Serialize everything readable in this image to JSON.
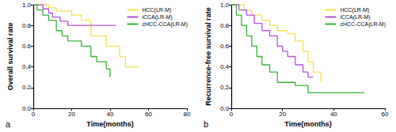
{
  "chart_data": [
    {
      "type": "line",
      "title": "a",
      "x_label": "Time(months)",
      "y_label": "Overall survival rate",
      "xlim": [
        0,
        80
      ],
      "xticks": [
        0,
        20,
        40,
        60,
        80
      ],
      "ylim": [
        0,
        1
      ],
      "yticks": [
        {
          "value": 0,
          "label": "0.0"
        },
        {
          "value": 0.2,
          "label": "0.2"
        },
        {
          "value": 0.4,
          "label": "0.4"
        },
        {
          "value": 0.6,
          "label": "0.6"
        },
        {
          "value": 0.8,
          "label": "0.8"
        },
        {
          "value": 1,
          "label": "1.0"
        }
      ],
      "legend": "upper right",
      "line_style": "step",
      "grid": false,
      "series": [
        {
          "name": "HCC(LR-M)",
          "color": "#f5e14a",
          "x": [
            0,
            8,
            12,
            20,
            25,
            30,
            38,
            45,
            48,
            55
          ],
          "values": [
            1.0,
            0.97,
            0.94,
            0.9,
            0.85,
            0.7,
            0.6,
            0.5,
            0.4,
            0.4
          ]
        },
        {
          "name": "iCCA(LR-M)",
          "color": "#b452d6",
          "x": [
            0,
            5,
            8,
            10,
            14,
            18,
            43
          ],
          "values": [
            1.0,
            0.96,
            0.92,
            0.88,
            0.84,
            0.8,
            0.8
          ]
        },
        {
          "name": "cHCC-CCA(LR-M)",
          "color": "#35b535",
          "x": [
            0,
            2,
            5,
            8,
            12,
            15,
            18,
            25,
            30,
            33,
            38,
            40
          ],
          "values": [
            1.0,
            0.95,
            0.9,
            0.85,
            0.75,
            0.7,
            0.65,
            0.6,
            0.5,
            0.45,
            0.38,
            0.3
          ]
        }
      ]
    },
    {
      "type": "line",
      "title": "b",
      "x_label": "Time(months)",
      "y_label": "Recurrence-free survival rate",
      "xlim": [
        0,
        60
      ],
      "xticks": [
        0,
        20,
        40,
        60
      ],
      "ylim": [
        0,
        1
      ],
      "yticks": [
        {
          "value": 0,
          "label": "0.0"
        },
        {
          "value": 0.2,
          "label": "0.2"
        },
        {
          "value": 0.4,
          "label": "0.4"
        },
        {
          "value": 0.6,
          "label": "0.6"
        },
        {
          "value": 0.8,
          "label": "0.8"
        },
        {
          "value": 1,
          "label": "1.0"
        }
      ],
      "legend": "upper right",
      "line_style": "step",
      "grid": false,
      "series": [
        {
          "name": "HCC(LR-M)",
          "color": "#f5e14a",
          "x": [
            0,
            3,
            5,
            8,
            12,
            15,
            18,
            22,
            25,
            28,
            30,
            32,
            35
          ],
          "values": [
            1.0,
            1.0,
            0.95,
            0.9,
            0.85,
            0.8,
            0.75,
            0.72,
            0.65,
            0.55,
            0.45,
            0.35,
            0.25
          ]
        },
        {
          "name": "iCCA(LR-M)",
          "color": "#b452d6",
          "x": [
            0,
            3,
            6,
            9,
            12,
            15,
            18,
            20,
            22,
            25,
            28,
            30,
            32
          ],
          "values": [
            1.0,
            0.95,
            0.9,
            0.82,
            0.75,
            0.7,
            0.6,
            0.55,
            0.5,
            0.42,
            0.35,
            0.3,
            0.3
          ]
        },
        {
          "name": "cHCC-CCA(LR-M)",
          "color": "#35b535",
          "x": [
            0,
            2,
            4,
            6,
            8,
            10,
            12,
            15,
            18,
            25,
            30,
            52
          ],
          "values": [
            1.0,
            0.9,
            0.8,
            0.7,
            0.6,
            0.5,
            0.42,
            0.35,
            0.25,
            0.22,
            0.15,
            0.15
          ]
        }
      ]
    }
  ]
}
